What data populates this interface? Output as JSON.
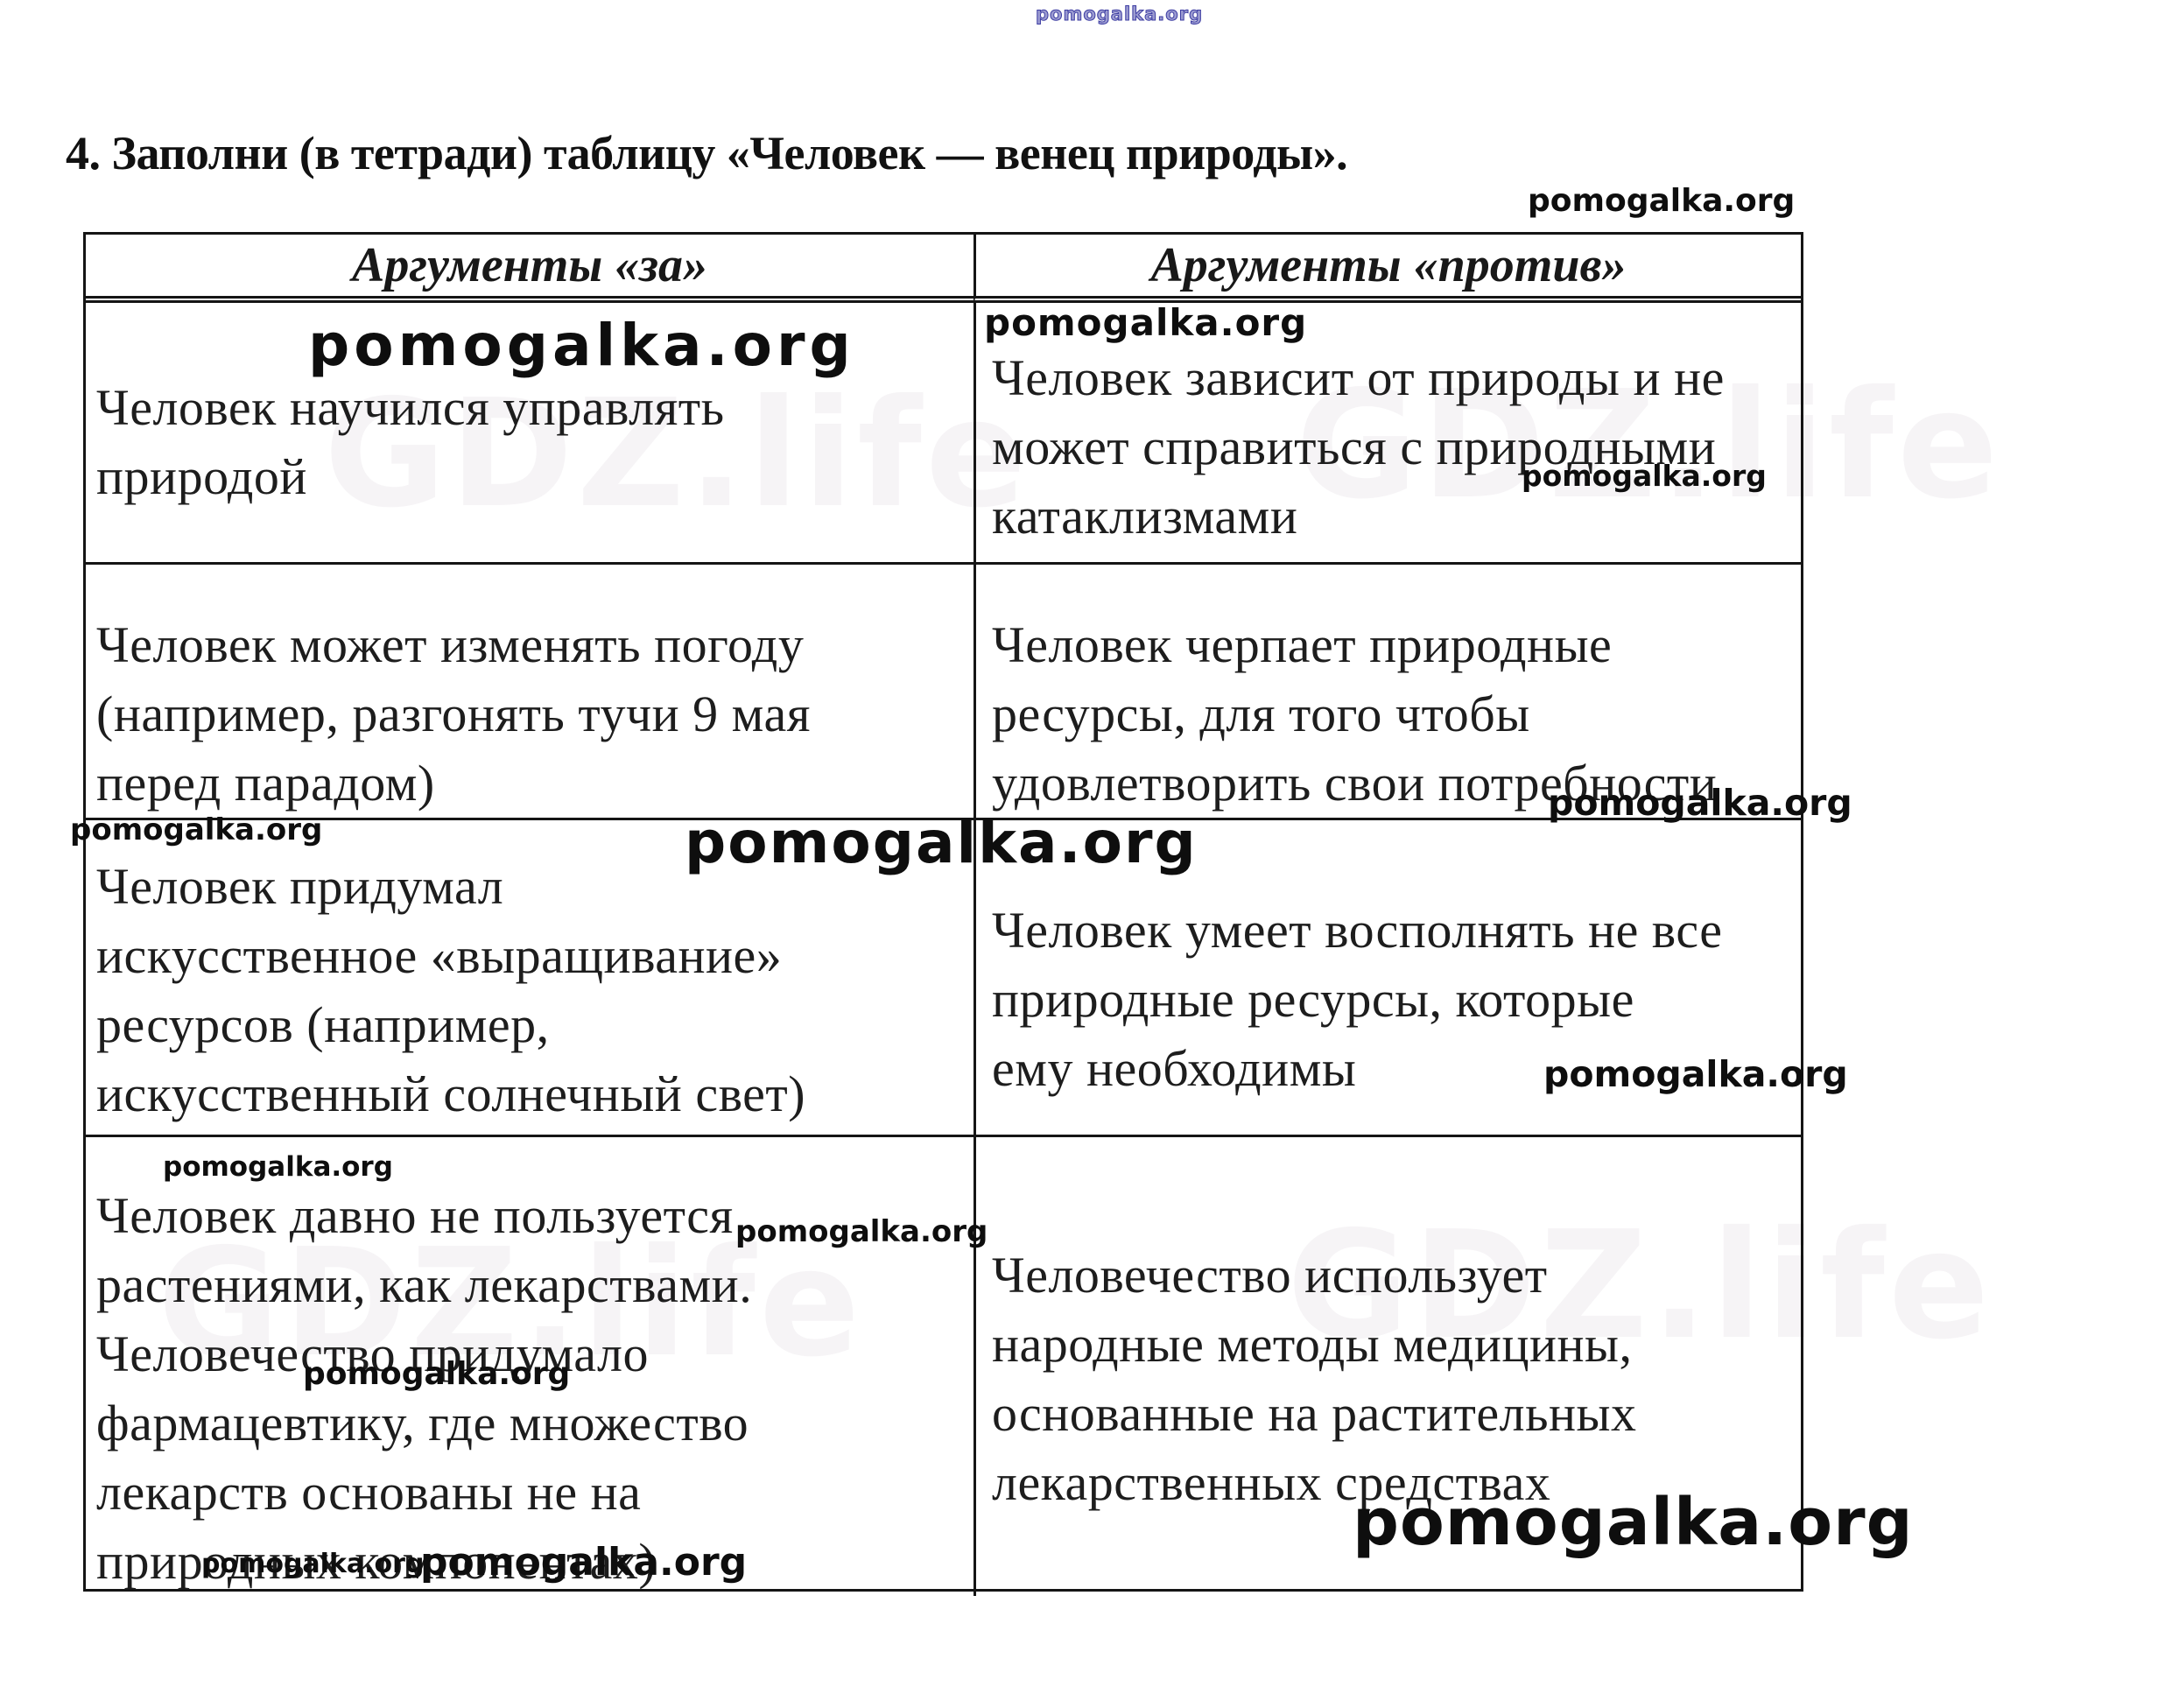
{
  "title": "4. Заполни (в тетради) таблицу «Человек — венец природы».",
  "watermark": {
    "text": "pomogalka.org"
  },
  "background_watermark": {
    "text": "GDZ.life"
  },
  "table": {
    "columns": [
      "Аргументы «за»",
      "Аргументы «против»"
    ],
    "rows": [
      {
        "pro": "Человек научился управлять\nприродой",
        "con": "Человек зависит от природы и не\nможет справиться с природными\nкатаклизмами"
      },
      {
        "pro": "Человек может изменять погоду\n(например, разгонять тучи 9 мая\nперед парадом)",
        "con": "Человек черпает природные\nресурсы, для того чтобы\nудовлетворить свои потребности"
      },
      {
        "pro": "Человек придумал\nискусственное «выращивание»\nресурсов (например,\nискусственный солнечный свет)",
        "con": "Человек умеет восполнять не все\nприродные ресурсы, которые\nему необходимы"
      },
      {
        "pro": "Человек давно не пользуется\nрастениями, как лекарствами.\nЧеловечество придумало\nфармацевтику, где множество\nлекарств основаны не на\nприродных компонентах)",
        "con": "Человечество использует\nнародные методы медицины,\nоснованные на растительных\nлекарственных средствах"
      }
    ]
  }
}
